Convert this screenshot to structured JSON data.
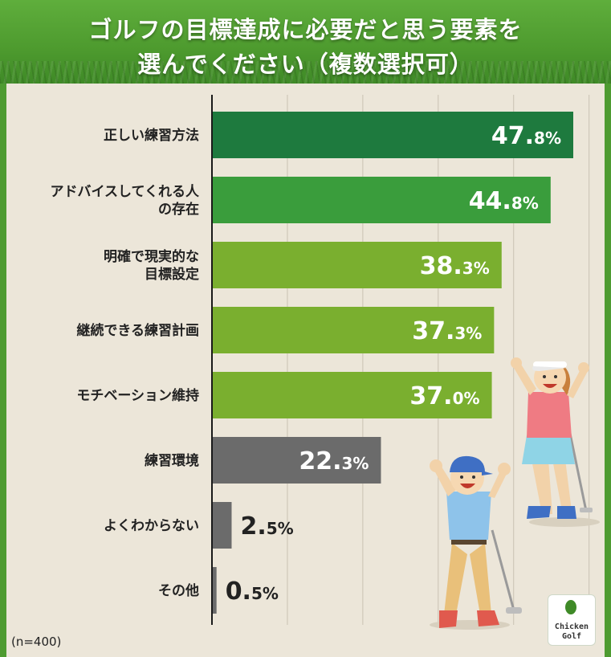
{
  "header": {
    "title_line1": "ゴルフの目標達成に必要だと思う要素を",
    "title_line2": "選んでください（複数選択可）"
  },
  "footer": {
    "sample_size": "(n=400)"
  },
  "logo": {
    "line1": "Chicken",
    "line2": "Golf"
  },
  "colors": {
    "dark_green": "#1e7a3e",
    "mid_green": "#3a9d3c",
    "light_green": "#7aaf2f",
    "gray": "#6b6b6b",
    "background": "#ece6d9"
  },
  "chart_data": {
    "type": "bar",
    "orientation": "horizontal",
    "unit": "%",
    "xlim": [
      0,
      50
    ],
    "grid": true,
    "categories": [
      "正しい練習方法",
      "アドバイスしてくれる人\nの存在",
      "明確で現実的な\n目標設定",
      "継続できる練習計画",
      "モチベーション維持",
      "練習環境",
      "よくわからない",
      "その他"
    ],
    "values": [
      47.8,
      44.8,
      38.3,
      37.3,
      37.0,
      22.3,
      2.5,
      0.5
    ],
    "value_labels": [
      {
        "int": "47.",
        "dec": "8%"
      },
      {
        "int": "44.",
        "dec": "8%"
      },
      {
        "int": "38.",
        "dec": "3%"
      },
      {
        "int": "37.",
        "dec": "3%"
      },
      {
        "int": "37.",
        "dec": "0%"
      },
      {
        "int": "22.",
        "dec": "3%"
      },
      {
        "int": "2.",
        "dec": "5%"
      },
      {
        "int": "0.",
        "dec": "5%"
      }
    ],
    "bar_colors": [
      "#1e7a3e",
      "#3a9d3c",
      "#7aaf2f",
      "#7aaf2f",
      "#7aaf2f",
      "#6b6b6b",
      "#6b6b6b",
      "#6b6b6b"
    ]
  }
}
